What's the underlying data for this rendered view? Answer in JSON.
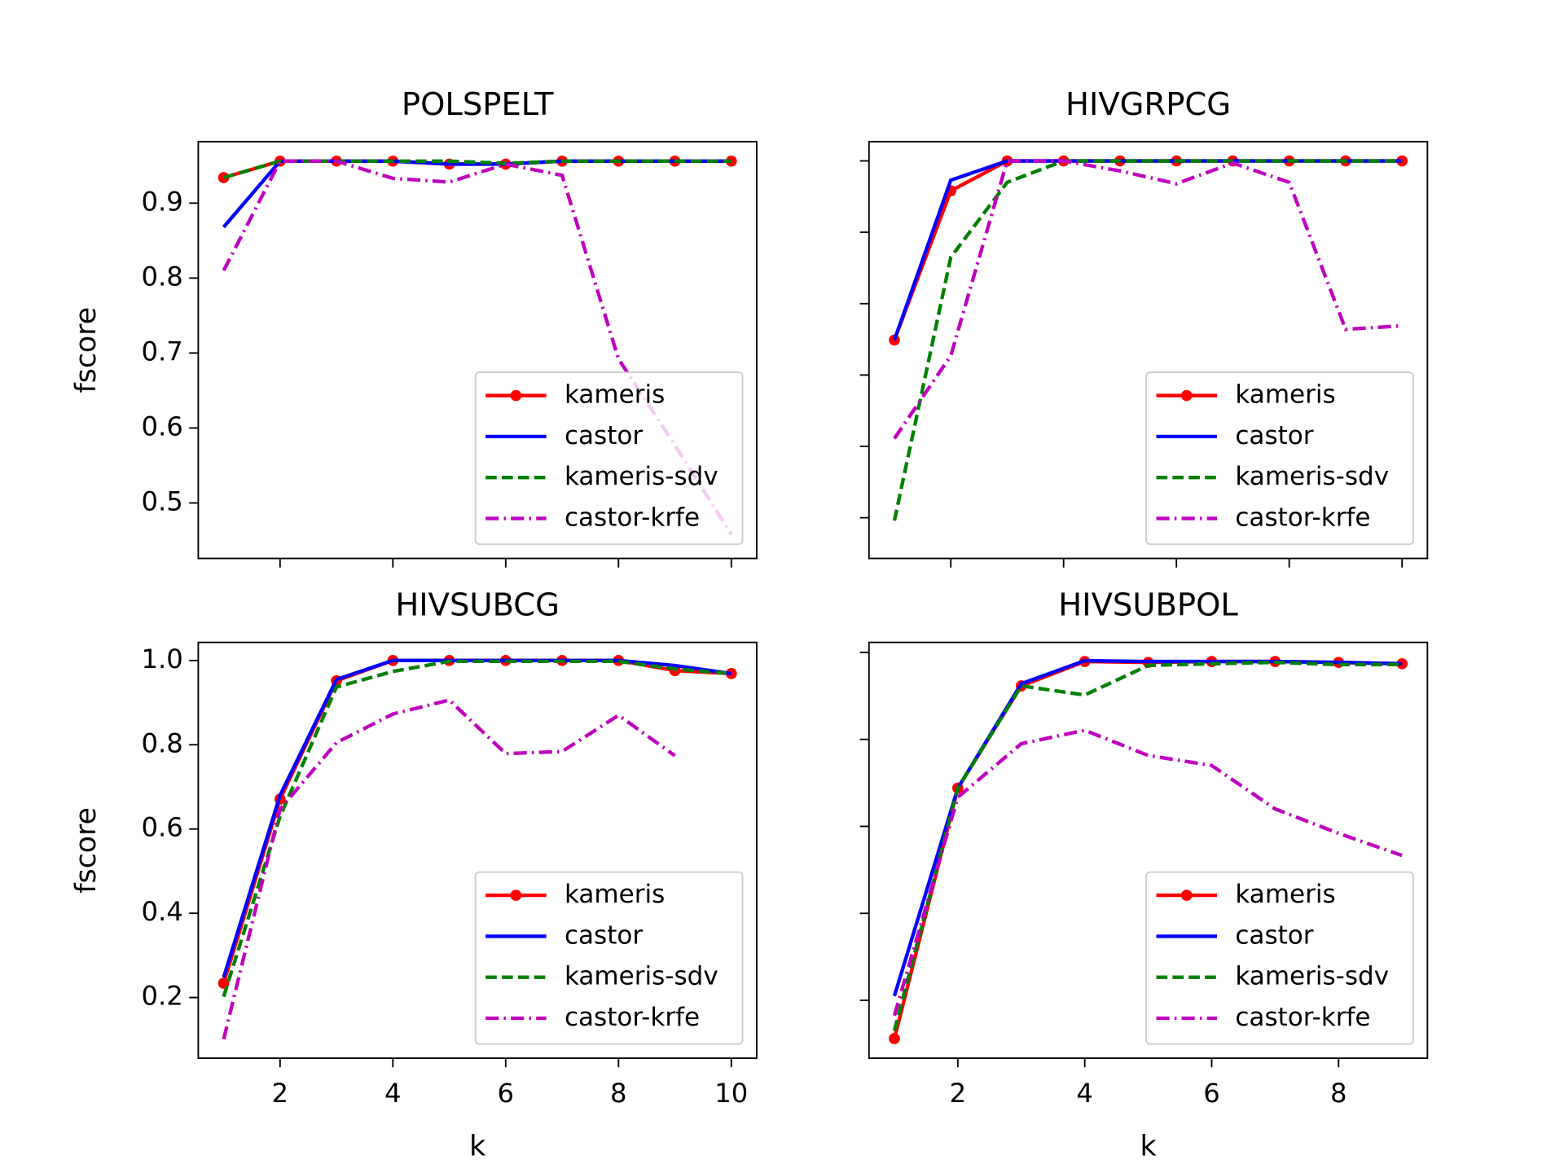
{
  "chart_data": [
    {
      "type": "line",
      "title": "POLSPELT",
      "ylabel": "fscore",
      "x": [
        1,
        2,
        3,
        4,
        5,
        6,
        7,
        8,
        9,
        10
      ],
      "xlim": [
        0.55,
        10.45
      ],
      "ylim": [
        0.426,
        0.982
      ],
      "xticks": [
        2,
        4,
        6,
        8,
        10
      ],
      "yticks": [
        0.5,
        0.6,
        0.7,
        0.8,
        0.9
      ],
      "xtick_labels": false,
      "ytick_labels": true,
      "legend": "lower right",
      "series": [
        {
          "name": "kameris",
          "color": "#ff0000",
          "linestyle": "solid",
          "marker": "circle",
          "values": [
            0.934,
            0.956,
            0.956,
            0.956,
            0.952,
            0.952,
            0.956,
            0.956,
            0.956,
            0.956
          ]
        },
        {
          "name": "castor",
          "color": "#0000ff",
          "linestyle": "solid",
          "marker": "none",
          "values": [
            0.868,
            0.956,
            0.956,
            0.956,
            0.952,
            0.952,
            0.956,
            0.956,
            0.956,
            0.956
          ]
        },
        {
          "name": "kameris-sdv",
          "color": "#008000",
          "linestyle": "dashed",
          "marker": "none",
          "values": [
            0.934,
            0.956,
            0.956,
            0.956,
            0.956,
            0.953,
            0.956,
            0.956,
            0.956,
            0.956
          ]
        },
        {
          "name": "castor-krfe",
          "color": "#bf00bf",
          "linestyle": "dashdot",
          "marker": "none",
          "values": [
            0.81,
            0.956,
            0.956,
            0.933,
            0.928,
            0.952,
            0.937,
            0.692,
            0.577,
            0.458
          ]
        }
      ]
    },
    {
      "type": "line",
      "title": "HIVGRPCG",
      "x": [
        1,
        2,
        3,
        4,
        5,
        6,
        7,
        8,
        9,
        10
      ],
      "xlim": [
        0.55,
        10.45
      ],
      "ylim": [
        0.443,
        1.027
      ],
      "xticks": [
        2,
        4,
        6,
        8,
        10
      ],
      "yticks": [
        0.5,
        0.6,
        0.7,
        0.8,
        0.9,
        1
      ],
      "xtick_labels": false,
      "ytick_labels": false,
      "legend": "lower right",
      "series": [
        {
          "name": "kameris",
          "color": "#ff0000",
          "linestyle": "solid",
          "marker": "circle",
          "values": [
            0.749,
            0.958,
            1,
            1,
            1,
            1,
            1,
            1,
            1,
            1
          ]
        },
        {
          "name": "castor",
          "color": "#0000ff",
          "linestyle": "solid",
          "marker": "none",
          "values": [
            0.749,
            0.973,
            1,
            1,
            1,
            1,
            1,
            1,
            1,
            1
          ]
        },
        {
          "name": "kameris-sdv",
          "color": "#008000",
          "linestyle": "dashed",
          "marker": "none",
          "values": [
            0.496,
            0.865,
            0.97,
            1,
            1,
            1,
            1,
            1,
            1,
            1
          ]
        },
        {
          "name": "castor-krfe",
          "color": "#bf00bf",
          "linestyle": "dashdot",
          "marker": "none",
          "values": [
            0.611,
            0.727,
            1,
            1,
            0.986,
            0.968,
            0.997,
            0.97,
            0.764,
            0.769
          ]
        }
      ]
    },
    {
      "type": "line",
      "title": "HIVSUBCG",
      "ylabel": "fscore",
      "xlabel": "k",
      "x": [
        1,
        2,
        3,
        4,
        5,
        6,
        7,
        8,
        9,
        10
      ],
      "xlim": [
        0.55,
        10.45
      ],
      "ylim": [
        0.056,
        1.043
      ],
      "xticks": [
        2,
        4,
        6,
        8,
        10
      ],
      "yticks": [
        0.2,
        0.4,
        0.6,
        0.8,
        {
          "value": 1,
          "label": "1.0"
        }
      ],
      "xtick_labels": true,
      "ytick_labels": true,
      "legend": "lower right",
      "series": [
        {
          "name": "kameris",
          "color": "#ff0000",
          "linestyle": "solid",
          "marker": "circle",
          "values": [
            0.234,
            0.671,
            0.952,
            1,
            1,
            1,
            1,
            1,
            0.976,
            0.969
          ]
        },
        {
          "name": "castor",
          "color": "#0000ff",
          "linestyle": "solid",
          "marker": "none",
          "values": [
            0.248,
            0.68,
            0.955,
            1,
            1,
            1,
            1,
            1,
            0.988,
            0.969
          ]
        },
        {
          "name": "kameris-sdv",
          "color": "#008000",
          "linestyle": "dashed",
          "marker": "none",
          "values": [
            0.202,
            0.63,
            0.937,
            0.974,
            0.998,
            0.998,
            0.998,
            0.998,
            0.98,
            0.969
          ]
        },
        {
          "name": "castor-krfe",
          "color": "#bf00bf",
          "linestyle": "dashdot",
          "marker": "none",
          "values": [
            0.101,
            0.647,
            0.805,
            0.873,
            0.906,
            0.779,
            0.784,
            0.87,
            0.774,
            null
          ]
        }
      ]
    },
    {
      "type": "line",
      "title": "HIVSUBPOL",
      "xlabel": "k",
      "x": [
        1,
        2,
        3,
        4,
        5,
        6,
        7,
        8,
        9
      ],
      "xlim": [
        0.6,
        9.4
      ],
      "ylim": [
        0.067,
        1.023
      ],
      "xticks": [
        2,
        4,
        6,
        8
      ],
      "yticks": [
        0.2,
        0.4,
        0.6,
        0.8,
        1
      ],
      "xtick_labels": true,
      "ytick_labels": false,
      "legend": "lower right",
      "series": [
        {
          "name": "kameris",
          "color": "#ff0000",
          "linestyle": "solid",
          "marker": "circle",
          "values": [
            0.112,
            0.688,
            0.923,
            0.979,
            0.977,
            0.979,
            0.979,
            0.977,
            0.974
          ]
        },
        {
          "name": "castor",
          "color": "#0000ff",
          "linestyle": "solid",
          "marker": "none",
          "values": [
            0.21,
            0.688,
            0.928,
            0.981,
            0.979,
            0.979,
            0.979,
            0.977,
            0.974
          ]
        },
        {
          "name": "kameris-sdv",
          "color": "#008000",
          "linestyle": "dashed",
          "marker": "none",
          "values": [
            0.13,
            0.688,
            0.923,
            0.902,
            0.97,
            0.974,
            0.977,
            0.972,
            0.972
          ]
        },
        {
          "name": "castor-krfe",
          "color": "#bf00bf",
          "linestyle": "dashdot",
          "marker": "none",
          "values": [
            0.165,
            0.667,
            0.79,
            0.821,
            0.763,
            0.74,
            0.64,
            0.584,
            0.533
          ]
        }
      ]
    }
  ]
}
